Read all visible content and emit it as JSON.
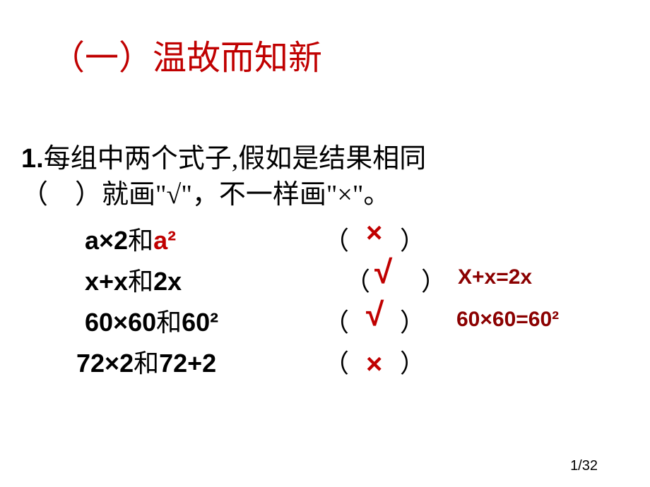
{
  "title": "（一）温故而知新",
  "question_line1_prefix": "1.",
  "question_line1": "每组中两个式子,假如是结果相同",
  "question_line2": "（　）就画\"√\"，不一样画\"×\"。",
  "rows": [
    {
      "lhs": "a×2",
      "and": "和",
      "rhs_red": "a²",
      "rhs_black": "",
      "paren": "（　　）",
      "mark": "×",
      "mark_style": "x"
    },
    {
      "lhs": "x+x",
      "and": "和",
      "rhs_red": "",
      "rhs_black": "2x",
      "paren": "（　　）",
      "mark": "√",
      "mark_style": "check"
    },
    {
      "lhs": "60×60",
      "and": "和",
      "rhs_red": "",
      "rhs_black": "60²",
      "paren": "（　　）",
      "mark": "√",
      "mark_style": "check"
    },
    {
      "lhs": "72×2",
      "and": "和",
      "rhs_red": "",
      "rhs_black": "72+2",
      "paren": "（　　）",
      "mark": "×",
      "mark_style": "x"
    }
  ],
  "notes": [
    {
      "text": "X+x=2x"
    },
    {
      "text": "60×60=60²"
    }
  ],
  "page_number": "1/32",
  "colors": {
    "title": "#c00000",
    "red": "#c00000",
    "dark_red": "#8b0000",
    "text": "#000000",
    "background": "#ffffff"
  }
}
